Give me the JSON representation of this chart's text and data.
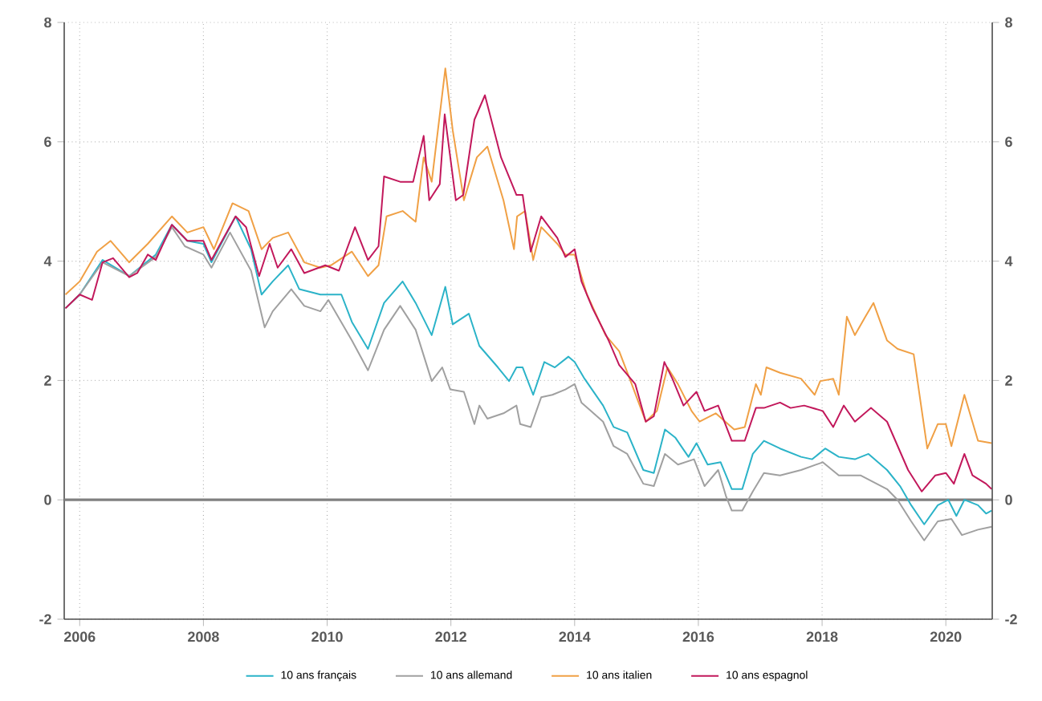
{
  "chart_data": {
    "type": "line",
    "xlim": [
      2005.75,
      2020.75
    ],
    "xticks": [
      2006,
      2008,
      2010,
      2012,
      2014,
      2016,
      2018,
      2020
    ],
    "ylim": [
      -2,
      8
    ],
    "yticks": [
      -2,
      0,
      2,
      4,
      6,
      8
    ],
    "y2lim": [
      -2,
      8
    ],
    "y2ticks": [
      -2,
      0,
      2,
      4,
      6,
      8
    ],
    "grid": true,
    "legend": "bottom",
    "ref_lines": [
      {
        "axis": "y",
        "value": 0,
        "color": "#808080"
      }
    ],
    "series": [
      {
        "name": "10 ans français",
        "color": "#2bb3c8",
        "x": [
          2005.77,
          2006.0,
          2006.37,
          2006.8,
          2007.23,
          2007.49,
          2007.74,
          2008.0,
          2008.13,
          2008.52,
          2008.77,
          2008.94,
          2009.12,
          2009.37,
          2009.55,
          2009.89,
          2010.23,
          2010.4,
          2010.66,
          2010.92,
          2011.22,
          2011.43,
          2011.69,
          2011.91,
          2012.03,
          2012.29,
          2012.46,
          2012.76,
          2012.94,
          2013.06,
          2013.16,
          2013.33,
          2013.51,
          2013.68,
          2013.9,
          2014.0,
          2014.16,
          2014.46,
          2014.63,
          2014.85,
          2015.11,
          2015.28,
          2015.46,
          2015.63,
          2015.84,
          2015.97,
          2016.15,
          2016.36,
          2016.54,
          2016.71,
          2016.88,
          2017.06,
          2017.32,
          2017.66,
          2017.84,
          2018.05,
          2018.27,
          2018.53,
          2018.75,
          2019.05,
          2019.26,
          2019.44,
          2019.65,
          2019.87,
          2020.04,
          2020.17,
          2020.3,
          2020.52,
          2020.65,
          2020.74
        ],
        "values": [
          3.21,
          3.44,
          4.02,
          3.75,
          4.11,
          4.61,
          4.34,
          4.29,
          3.98,
          4.75,
          4.2,
          3.44,
          3.66,
          3.93,
          3.53,
          3.44,
          3.44,
          2.98,
          2.53,
          3.3,
          3.66,
          3.3,
          2.76,
          3.57,
          2.94,
          3.12,
          2.58,
          2.22,
          1.99,
          2.22,
          2.22,
          1.76,
          2.31,
          2.22,
          2.4,
          2.31,
          2.03,
          1.58,
          1.22,
          1.13,
          0.5,
          0.45,
          1.18,
          1.04,
          0.72,
          0.95,
          0.59,
          0.63,
          0.18,
          0.18,
          0.77,
          0.99,
          0.86,
          0.72,
          0.68,
          0.86,
          0.72,
          0.68,
          0.77,
          0.5,
          0.23,
          -0.09,
          -0.41,
          -0.09,
          0.0,
          -0.27,
          0.0,
          -0.09,
          -0.23,
          -0.18
        ]
      },
      {
        "name": "10 ans allemand",
        "color": "#a0a0a0",
        "x": [
          2005.77,
          2006.0,
          2006.37,
          2006.8,
          2007.23,
          2007.49,
          2007.7,
          2008.0,
          2008.13,
          2008.43,
          2008.77,
          2008.99,
          2009.12,
          2009.42,
          2009.63,
          2009.89,
          2010.02,
          2010.4,
          2010.66,
          2010.92,
          2011.18,
          2011.43,
          2011.69,
          2011.86,
          2011.99,
          2012.21,
          2012.38,
          2012.46,
          2012.59,
          2012.85,
          2013.06,
          2013.12,
          2013.29,
          2013.46,
          2013.64,
          2013.85,
          2014.0,
          2014.11,
          2014.46,
          2014.63,
          2014.85,
          2015.11,
          2015.28,
          2015.46,
          2015.67,
          2015.93,
          2016.1,
          2016.32,
          2016.45,
          2016.54,
          2016.71,
          2016.88,
          2017.06,
          2017.32,
          2017.66,
          2018.01,
          2018.27,
          2018.62,
          2019.05,
          2019.22,
          2019.44,
          2019.65,
          2019.87,
          2020.09,
          2020.26,
          2020.52,
          2020.74
        ],
        "values": [
          3.21,
          3.44,
          3.98,
          3.75,
          4.07,
          4.57,
          4.25,
          4.11,
          3.89,
          4.48,
          3.84,
          2.89,
          3.16,
          3.53,
          3.25,
          3.16,
          3.35,
          2.67,
          2.17,
          2.85,
          3.25,
          2.85,
          1.99,
          2.22,
          1.85,
          1.81,
          1.27,
          1.58,
          1.36,
          1.45,
          1.58,
          1.27,
          1.22,
          1.72,
          1.76,
          1.85,
          1.94,
          1.63,
          1.31,
          0.9,
          0.77,
          0.27,
          0.23,
          0.77,
          0.59,
          0.68,
          0.23,
          0.5,
          0.05,
          -0.18,
          -0.18,
          0.14,
          0.45,
          0.41,
          0.5,
          0.63,
          0.41,
          0.41,
          0.18,
          0.0,
          -0.36,
          -0.68,
          -0.36,
          -0.32,
          -0.59,
          -0.5,
          -0.45
        ]
      },
      {
        "name": "10 ans italien",
        "color": "#f0a045",
        "x": [
          2005.77,
          2006.0,
          2006.28,
          2006.5,
          2006.8,
          2007.1,
          2007.49,
          2007.74,
          2008.0,
          2008.17,
          2008.47,
          2008.73,
          2008.94,
          2009.12,
          2009.37,
          2009.63,
          2009.89,
          2010.06,
          2010.4,
          2010.66,
          2010.83,
          2010.96,
          2011.22,
          2011.43,
          2011.56,
          2011.69,
          2011.91,
          2012.03,
          2012.21,
          2012.42,
          2012.59,
          2012.85,
          2013.02,
          2013.07,
          2013.2,
          2013.33,
          2013.46,
          2013.72,
          2013.85,
          2014.0,
          2014.2,
          2014.5,
          2014.72,
          2014.89,
          2015.15,
          2015.33,
          2015.5,
          2015.67,
          2015.89,
          2016.02,
          2016.28,
          2016.58,
          2016.75,
          2016.93,
          2017.01,
          2017.1,
          2017.32,
          2017.66,
          2017.88,
          2017.97,
          2018.18,
          2018.27,
          2018.4,
          2018.53,
          2018.7,
          2018.83,
          2019.05,
          2019.22,
          2019.48,
          2019.7,
          2019.87,
          2020.0,
          2020.09,
          2020.3,
          2020.52,
          2020.74
        ],
        "values": [
          3.44,
          3.66,
          4.16,
          4.34,
          3.98,
          4.29,
          4.75,
          4.48,
          4.57,
          4.2,
          4.97,
          4.84,
          4.2,
          4.39,
          4.48,
          3.98,
          3.89,
          3.93,
          4.16,
          3.75,
          3.93,
          4.75,
          4.84,
          4.66,
          5.74,
          5.33,
          7.23,
          6.19,
          5.02,
          5.74,
          5.92,
          5.02,
          4.2,
          4.75,
          4.84,
          4.02,
          4.57,
          4.29,
          4.11,
          4.11,
          3.44,
          2.76,
          2.49,
          2.03,
          1.31,
          1.49,
          2.22,
          1.94,
          1.49,
          1.31,
          1.45,
          1.18,
          1.22,
          1.94,
          1.76,
          2.22,
          2.13,
          2.03,
          1.76,
          1.99,
          2.03,
          1.76,
          3.07,
          2.76,
          3.07,
          3.3,
          2.67,
          2.53,
          2.44,
          0.86,
          1.27,
          1.27,
          0.9,
          1.76,
          0.99,
          0.95
        ]
      },
      {
        "name": "10 ans espagnol",
        "color": "#c2185b",
        "x": [
          2005.77,
          2006.0,
          2006.2,
          2006.37,
          2006.54,
          2006.8,
          2006.93,
          2007.1,
          2007.23,
          2007.49,
          2007.74,
          2008.0,
          2008.13,
          2008.52,
          2008.69,
          2008.9,
          2009.07,
          2009.2,
          2009.42,
          2009.63,
          2009.97,
          2010.19,
          2010.45,
          2010.66,
          2010.83,
          2010.92,
          2011.18,
          2011.39,
          2011.56,
          2011.65,
          2011.82,
          2011.9,
          2012.08,
          2012.2,
          2012.38,
          2012.55,
          2012.81,
          2013.06,
          2013.16,
          2013.29,
          2013.46,
          2013.72,
          2013.85,
          2014.0,
          2014.11,
          2014.29,
          2014.55,
          2014.72,
          2014.98,
          2015.15,
          2015.28,
          2015.45,
          2015.58,
          2015.76,
          2015.97,
          2016.1,
          2016.32,
          2016.54,
          2016.75,
          2016.93,
          2017.06,
          2017.32,
          2017.49,
          2017.71,
          2018.01,
          2018.18,
          2018.35,
          2018.53,
          2018.79,
          2019.05,
          2019.39,
          2019.61,
          2019.83,
          2020.0,
          2020.13,
          2020.3,
          2020.43,
          2020.65,
          2020.74
        ],
        "values": [
          3.21,
          3.44,
          3.35,
          3.98,
          4.05,
          3.73,
          3.8,
          4.11,
          4.02,
          4.61,
          4.34,
          4.34,
          4.02,
          4.75,
          4.57,
          3.75,
          4.29,
          3.89,
          4.2,
          3.8,
          3.93,
          3.84,
          4.57,
          4.02,
          4.25,
          5.42,
          5.33,
          5.33,
          6.1,
          5.02,
          5.29,
          6.46,
          5.02,
          5.11,
          6.37,
          6.78,
          5.74,
          5.11,
          5.11,
          4.16,
          4.75,
          4.39,
          4.07,
          4.2,
          3.66,
          3.21,
          2.67,
          2.26,
          1.94,
          1.31,
          1.4,
          2.31,
          2.03,
          1.58,
          1.81,
          1.49,
          1.58,
          0.99,
          0.99,
          1.54,
          1.54,
          1.63,
          1.54,
          1.58,
          1.49,
          1.22,
          1.58,
          1.31,
          1.54,
          1.31,
          0.5,
          0.14,
          0.41,
          0.45,
          0.27,
          0.77,
          0.41,
          0.27,
          0.18
        ]
      }
    ]
  }
}
